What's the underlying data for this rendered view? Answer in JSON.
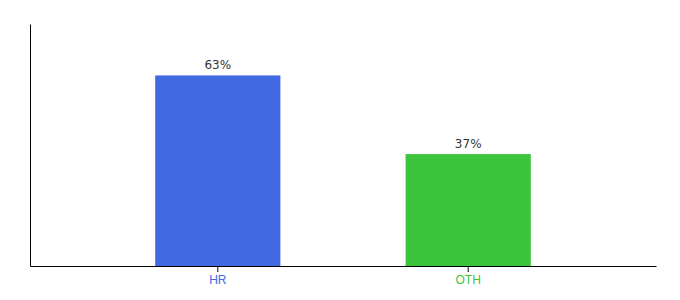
{
  "chart_data": {
    "type": "bar",
    "categories": [
      "HR",
      "OTH"
    ],
    "values": [
      63,
      37
    ],
    "value_labels": [
      "63%",
      "37%"
    ],
    "colors": [
      "#4169e1",
      "#3dc43d"
    ],
    "ylim": [
      0,
      80
    ],
    "data_labels": true,
    "tick_labels": "x"
  }
}
